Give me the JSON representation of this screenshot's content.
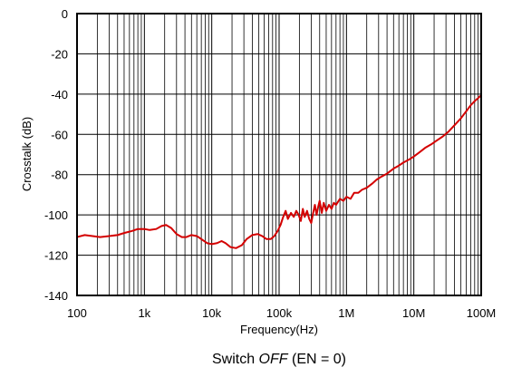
{
  "chart_data": {
    "type": "line",
    "title": "",
    "xlabel": "Frequency(Hz)",
    "ylabel": "Crosstalk (dB)",
    "caption": {
      "prefix": "Switch ",
      "emphasis": "OFF",
      "suffix": " (EN = 0)"
    },
    "x_scale": "log",
    "xlim": [
      100,
      100000000
    ],
    "ylim": [
      -140,
      0
    ],
    "x_ticks": [
      {
        "value": 100,
        "label": "100"
      },
      {
        "value": 1000,
        "label": "1k"
      },
      {
        "value": 10000,
        "label": "10k"
      },
      {
        "value": 100000,
        "label": "100k"
      },
      {
        "value": 1000000,
        "label": "1M"
      },
      {
        "value": 10000000,
        "label": "10M"
      },
      {
        "value": 100000000,
        "label": "100M"
      }
    ],
    "y_ticks": [
      {
        "value": 0,
        "label": "0"
      },
      {
        "value": -20,
        "label": "-20"
      },
      {
        "value": -40,
        "label": "-40"
      },
      {
        "value": -60,
        "label": "-60"
      },
      {
        "value": -80,
        "label": "-80"
      },
      {
        "value": -100,
        "label": "-100"
      },
      {
        "value": -120,
        "label": "-120"
      },
      {
        "value": -140,
        "label": "-140"
      }
    ],
    "grid": true,
    "legend": "none",
    "series": [
      {
        "color": "#d40000",
        "points": [
          [
            100,
            -111
          ],
          [
            130,
            -110
          ],
          [
            170,
            -110.5
          ],
          [
            220,
            -111
          ],
          [
            300,
            -110.5
          ],
          [
            400,
            -110
          ],
          [
            500,
            -109
          ],
          [
            650,
            -108
          ],
          [
            800,
            -107
          ],
          [
            1000,
            -107
          ],
          [
            1200,
            -107.5
          ],
          [
            1500,
            -107
          ],
          [
            1800,
            -105.5
          ],
          [
            2100,
            -105
          ],
          [
            2500,
            -106.5
          ],
          [
            3000,
            -109.5
          ],
          [
            3600,
            -111
          ],
          [
            4200,
            -111
          ],
          [
            5000,
            -110
          ],
          [
            6000,
            -110.5
          ],
          [
            7000,
            -112
          ],
          [
            8500,
            -114
          ],
          [
            10000,
            -114.5
          ],
          [
            12000,
            -114
          ],
          [
            14000,
            -113
          ],
          [
            16000,
            -114
          ],
          [
            19000,
            -116
          ],
          [
            23000,
            -116.5
          ],
          [
            28000,
            -115
          ],
          [
            33000,
            -112
          ],
          [
            40000,
            -110
          ],
          [
            48000,
            -109.5
          ],
          [
            56000,
            -110.5
          ],
          [
            65000,
            -112
          ],
          [
            75000,
            -112
          ],
          [
            85000,
            -110.5
          ],
          [
            95000,
            -108
          ],
          [
            105000,
            -105
          ],
          [
            115000,
            -101
          ],
          [
            125000,
            -98
          ],
          [
            135000,
            -102
          ],
          [
            150000,
            -99
          ],
          [
            165000,
            -101
          ],
          [
            180000,
            -98
          ],
          [
            195000,
            -100
          ],
          [
            210000,
            -103
          ],
          [
            225000,
            -97
          ],
          [
            240000,
            -101
          ],
          [
            260000,
            -98
          ],
          [
            280000,
            -102
          ],
          [
            300000,
            -104
          ],
          [
            320000,
            -99
          ],
          [
            340000,
            -95
          ],
          [
            360000,
            -100
          ],
          [
            380000,
            -96
          ],
          [
            400000,
            -93
          ],
          [
            430000,
            -99
          ],
          [
            460000,
            -94
          ],
          [
            500000,
            -98
          ],
          [
            550000,
            -95
          ],
          [
            600000,
            -97
          ],
          [
            650000,
            -94
          ],
          [
            700000,
            -95
          ],
          [
            800000,
            -92
          ],
          [
            900000,
            -93
          ],
          [
            1000000,
            -91
          ],
          [
            1150000,
            -92
          ],
          [
            1300000,
            -89
          ],
          [
            1500000,
            -89
          ],
          [
            1700000,
            -87.5
          ],
          [
            2000000,
            -86.5
          ],
          [
            2400000,
            -84.5
          ],
          [
            2800000,
            -82.5
          ],
          [
            3300000,
            -81
          ],
          [
            4000000,
            -79.5
          ],
          [
            5000000,
            -77
          ],
          [
            6000000,
            -75.5
          ],
          [
            7000000,
            -74
          ],
          [
            8500000,
            -72.5
          ],
          [
            10000000,
            -71
          ],
          [
            12000000,
            -69
          ],
          [
            15000000,
            -66.5
          ],
          [
            18000000,
            -65
          ],
          [
            22000000,
            -63
          ],
          [
            27000000,
            -61
          ],
          [
            33000000,
            -58.5
          ],
          [
            40000000,
            -55.5
          ],
          [
            50000000,
            -52
          ],
          [
            60000000,
            -48.5
          ],
          [
            70000000,
            -45.5
          ],
          [
            80000000,
            -43.5
          ],
          [
            90000000,
            -42
          ],
          [
            100000000,
            -40.5
          ]
        ]
      }
    ]
  }
}
